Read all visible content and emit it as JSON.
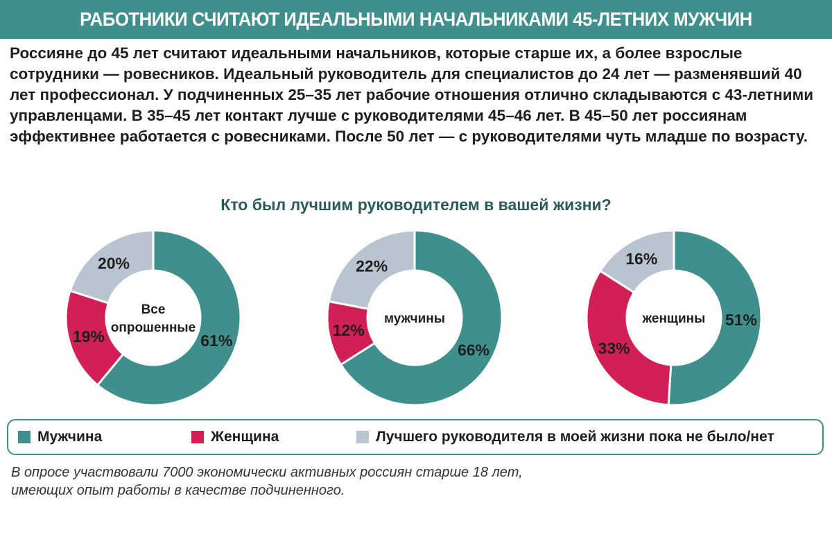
{
  "header": {
    "title": "РАБОТНИКИ СЧИТАЮТ ИДЕАЛЬНЫМИ НАЧАЛЬНИКАМИ 45-ЛЕТНИХ МУЖЧИН",
    "lead": "Россияне до 45 лет считают идеальными начальников, которые старше их, а более взрослые сотрудники — ровесников. Идеальный руководитель для специалистов до 24 лет — разменявший 40 лет профессионал. У подчиненных 25–35 лет рабочие отношения отлично складываются с 43-летними управленцами. В 35–45 лет контакт лучше с руководителями 45–46 лет. В 45–50 лет россиянам эффективнее работается с ровесниками. После 50 лет — с руководителями чуть младше по возрасту."
  },
  "chart_title": "Кто был лучшим руководителем в вашей жизни?",
  "colors": {
    "male": "#3f8f8c",
    "female": "#d21f55",
    "none": "#b9c4d0"
  },
  "chart_data": [
    {
      "type": "pie",
      "center_label": [
        "Все",
        "опрошенные"
      ],
      "categories": [
        "Мужчина",
        "Женщина",
        "Лучшего руководителя в моей жизни пока не было/нет"
      ],
      "values": [
        61,
        19,
        20
      ],
      "labels": [
        "61%",
        "19%",
        "20%"
      ]
    },
    {
      "type": "pie",
      "center_label": [
        "мужчины"
      ],
      "categories": [
        "Мужчина",
        "Женщина",
        "Лучшего руководителя в моей жизни пока не было/нет"
      ],
      "values": [
        66,
        12,
        22
      ],
      "labels": [
        "66%",
        "12%",
        "22%"
      ]
    },
    {
      "type": "pie",
      "center_label": [
        "женщины"
      ],
      "categories": [
        "Мужчина",
        "Женщина",
        "Лучшего руководителя в моей жизни пока не было/нет"
      ],
      "values": [
        51,
        33,
        16
      ],
      "labels": [
        "51%",
        "33%",
        "16%"
      ]
    }
  ],
  "legend": [
    {
      "label": "Мужчина",
      "color": "#3f8f8c"
    },
    {
      "label": "Женщина",
      "color": "#d21f55"
    },
    {
      "label": "Лучшего руководителя в моей жизни пока не было/нет",
      "color": "#b9c4d0"
    }
  ],
  "footnote": {
    "line1": "В опросе участвовали 7000 экономически активных россиян старше 18 лет,",
    "line2": "имеющих опыт работы в качестве подчиненного."
  }
}
